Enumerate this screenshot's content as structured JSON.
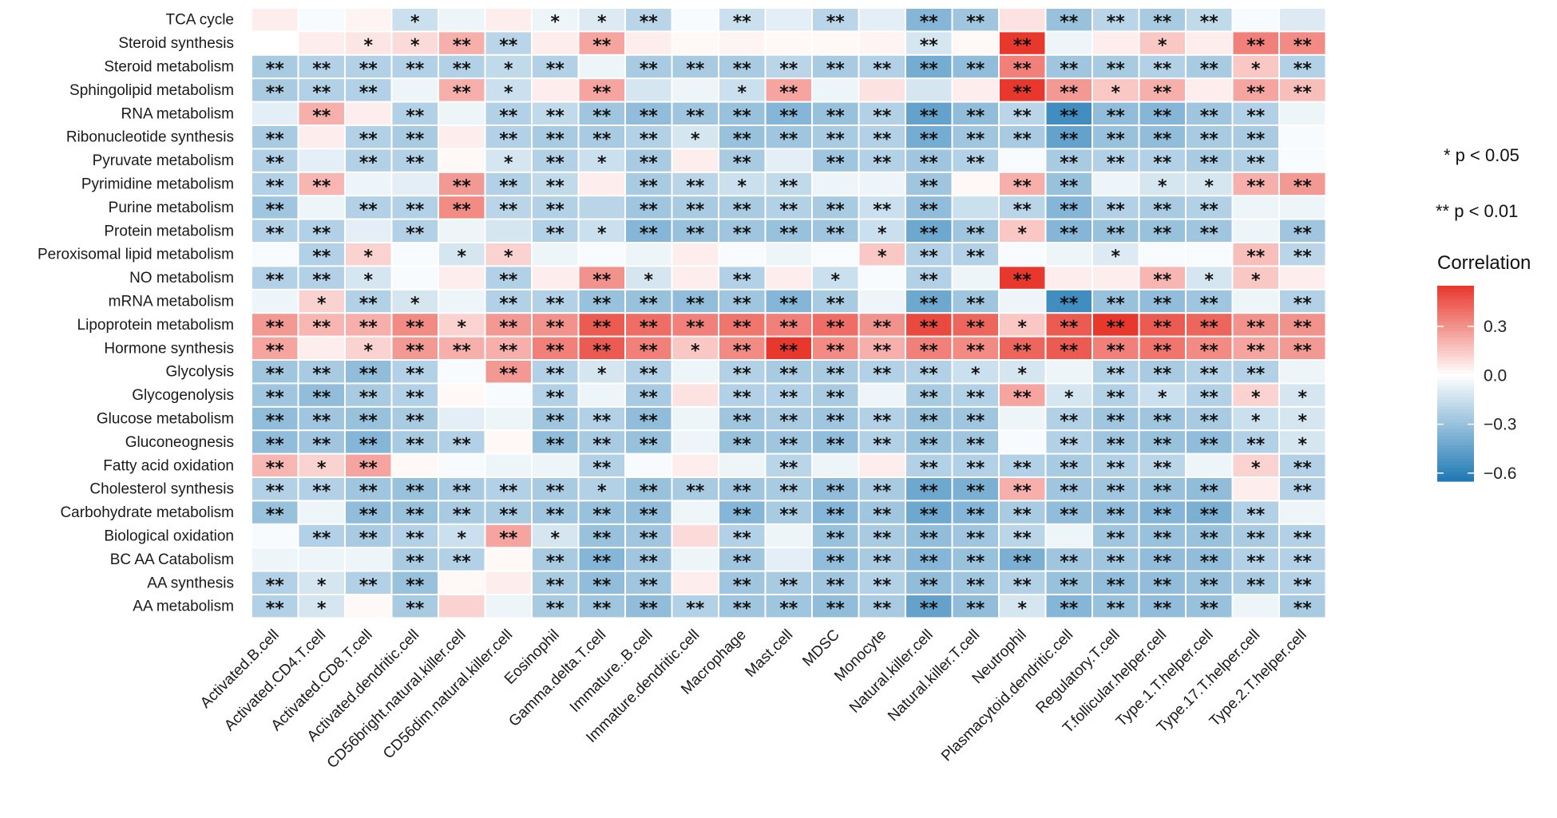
{
  "chart_data": {
    "type": "heatmap",
    "title": "",
    "xlabel": "",
    "ylabel": "",
    "rows": [
      "TCA cycle",
      "Steroid synthesis",
      "Steroid metabolism",
      "Sphingolipid metabolism",
      "RNA metabolism",
      "Ribonucleotide synthesis",
      "Pyruvate metabolism",
      "Pyrimidine metabolism",
      "Purine metabolism",
      "Protein metabolism",
      "Peroxisomal lipid metabolism",
      "NO metabolism",
      "mRNA metabolism",
      "Lipoprotein metabolism",
      "Hormone synthesis",
      "Glycolysis",
      "Glycogenolysis",
      "Glucose metabolism",
      "Gluconeognesis",
      "Fatty acid oxidation",
      "Cholesterol synthesis",
      "Carbohydrate metabolism",
      "Biological oxidation",
      "BC AA Catabolism",
      "AA synthesis",
      "AA metabolism"
    ],
    "columns": [
      "Activated.B.cell",
      "Activated.CD4.T.cell",
      "Activated.CD8.T.cell",
      "Activated.dendritic.cell",
      "CD56bright.natural.killer.cell",
      "CD56dim.natural.killer.cell",
      "Eosinophil",
      "Gamma.delta.T.cell",
      "Immature..B.cell",
      "Immature.dendritic.cell",
      "Macrophage",
      "Mast.cell",
      "MDSC",
      "Monocyte",
      "Natural.killer.cell",
      "Natural.killer.T.cell",
      "Neutrophil",
      "Plasmacytoid.dendritic.cell",
      "Regulatory.T.cell",
      "T.follicular.helper.cell",
      "Type.1.T.helper.cell",
      "Type.17.T.helper.cell",
      "Type.2.T.helper.cell"
    ],
    "values": [
      [
        0.05,
        -0.02,
        0.03,
        -0.15,
        -0.05,
        0.05,
        -0.05,
        -0.1,
        -0.2,
        -0.02,
        -0.15,
        -0.08,
        -0.2,
        -0.08,
        -0.35,
        -0.28,
        0.08,
        -0.3,
        -0.2,
        -0.25,
        -0.18,
        -0.02,
        -0.1
      ],
      [
        0.0,
        0.05,
        0.07,
        0.1,
        0.22,
        -0.2,
        0.05,
        0.25,
        0.05,
        0.02,
        0.03,
        0.02,
        0.02,
        0.03,
        -0.12,
        0.02,
        0.58,
        -0.05,
        0.05,
        0.15,
        0.05,
        0.35,
        0.32
      ],
      [
        -0.25,
        -0.22,
        -0.22,
        -0.22,
        -0.22,
        -0.18,
        -0.22,
        -0.05,
        -0.25,
        -0.25,
        -0.25,
        -0.2,
        -0.25,
        -0.22,
        -0.4,
        -0.32,
        0.35,
        -0.28,
        -0.25,
        -0.22,
        -0.25,
        0.15,
        -0.22
      ],
      [
        -0.25,
        -0.22,
        -0.22,
        -0.05,
        0.22,
        -0.15,
        0.05,
        0.25,
        -0.12,
        -0.05,
        -0.15,
        0.25,
        -0.05,
        0.08,
        -0.12,
        0.05,
        0.55,
        0.28,
        0.15,
        0.22,
        0.05,
        0.25,
        0.18
      ],
      [
        -0.08,
        0.22,
        0.05,
        -0.22,
        -0.05,
        -0.22,
        -0.18,
        -0.28,
        -0.32,
        -0.28,
        -0.3,
        -0.35,
        -0.3,
        -0.22,
        -0.45,
        -0.32,
        -0.2,
        -0.55,
        -0.32,
        -0.35,
        -0.28,
        -0.22,
        -0.05
      ],
      [
        -0.25,
        0.05,
        -0.22,
        -0.25,
        0.05,
        -0.22,
        -0.25,
        -0.25,
        -0.22,
        -0.12,
        -0.3,
        -0.28,
        -0.25,
        -0.22,
        -0.4,
        -0.28,
        -0.25,
        -0.45,
        -0.3,
        -0.32,
        -0.25,
        -0.25,
        -0.02
      ],
      [
        -0.22,
        -0.08,
        -0.22,
        -0.22,
        0.02,
        -0.12,
        -0.22,
        -0.15,
        -0.25,
        0.05,
        -0.25,
        -0.08,
        -0.28,
        -0.22,
        -0.28,
        -0.22,
        -0.02,
        -0.25,
        -0.22,
        -0.22,
        -0.25,
        -0.22,
        -0.02
      ],
      [
        -0.22,
        0.2,
        -0.05,
        -0.08,
        0.28,
        -0.22,
        -0.18,
        0.05,
        -0.25,
        -0.2,
        -0.15,
        -0.18,
        -0.05,
        -0.05,
        -0.28,
        0.02,
        0.22,
        -0.3,
        -0.05,
        -0.12,
        -0.12,
        0.22,
        0.28
      ],
      [
        -0.28,
        -0.05,
        -0.22,
        -0.22,
        0.32,
        -0.2,
        -0.22,
        -0.2,
        -0.28,
        -0.25,
        -0.25,
        -0.22,
        -0.25,
        -0.15,
        -0.32,
        -0.15,
        -0.2,
        -0.35,
        -0.22,
        -0.25,
        -0.22,
        -0.05,
        -0.05
      ],
      [
        -0.22,
        -0.22,
        -0.08,
        -0.22,
        -0.05,
        -0.12,
        -0.22,
        -0.15,
        -0.35,
        -0.3,
        -0.28,
        -0.3,
        -0.28,
        -0.15,
        -0.42,
        -0.28,
        0.15,
        -0.35,
        -0.3,
        -0.3,
        -0.28,
        -0.05,
        -0.28
      ],
      [
        -0.02,
        -0.22,
        0.12,
        -0.02,
        -0.12,
        0.12,
        -0.05,
        -0.02,
        -0.05,
        0.05,
        -0.02,
        -0.05,
        -0.02,
        0.15,
        -0.22,
        -0.22,
        -0.02,
        -0.05,
        -0.1,
        -0.02,
        -0.02,
        0.18,
        -0.2
      ],
      [
        -0.22,
        -0.22,
        -0.12,
        -0.02,
        0.05,
        -0.22,
        0.05,
        0.3,
        -0.12,
        0.05,
        -0.22,
        0.05,
        -0.15,
        -0.02,
        -0.22,
        -0.05,
        0.55,
        0.05,
        0.05,
        0.2,
        -0.12,
        0.15,
        0.05
      ],
      [
        -0.05,
        0.12,
        -0.22,
        -0.12,
        -0.05,
        -0.22,
        -0.22,
        -0.3,
        -0.3,
        -0.32,
        -0.28,
        -0.35,
        -0.25,
        -0.05,
        -0.42,
        -0.28,
        -0.05,
        -0.55,
        -0.3,
        -0.32,
        -0.28,
        -0.05,
        -0.22
      ],
      [
        0.28,
        0.2,
        0.22,
        0.32,
        0.12,
        0.28,
        0.3,
        0.45,
        0.4,
        0.35,
        0.38,
        0.35,
        0.4,
        0.3,
        0.5,
        0.42,
        0.15,
        0.45,
        0.55,
        0.45,
        0.42,
        0.3,
        0.3
      ],
      [
        0.25,
        0.05,
        0.12,
        0.28,
        0.22,
        0.22,
        0.35,
        0.45,
        0.35,
        0.15,
        0.32,
        0.58,
        0.32,
        0.22,
        0.35,
        0.32,
        0.42,
        0.45,
        0.35,
        0.38,
        0.32,
        0.25,
        0.28
      ],
      [
        -0.28,
        -0.25,
        -0.32,
        -0.22,
        -0.02,
        0.28,
        -0.22,
        -0.12,
        -0.22,
        -0.05,
        -0.22,
        -0.25,
        -0.25,
        -0.22,
        -0.22,
        -0.15,
        -0.12,
        -0.05,
        -0.22,
        -0.25,
        -0.22,
        -0.22,
        -0.05
      ],
      [
        -0.28,
        -0.32,
        -0.25,
        -0.22,
        0.02,
        -0.02,
        -0.22,
        -0.05,
        -0.25,
        0.08,
        -0.22,
        -0.22,
        -0.25,
        -0.05,
        -0.25,
        -0.22,
        0.25,
        -0.12,
        -0.22,
        -0.15,
        -0.22,
        0.12,
        -0.12
      ],
      [
        -0.32,
        -0.28,
        -0.3,
        -0.25,
        -0.08,
        -0.05,
        -0.28,
        -0.22,
        -0.32,
        -0.05,
        -0.28,
        -0.25,
        -0.28,
        -0.22,
        -0.3,
        -0.28,
        -0.05,
        -0.22,
        -0.28,
        -0.28,
        -0.25,
        -0.15,
        -0.12
      ],
      [
        -0.32,
        -0.28,
        -0.35,
        -0.25,
        -0.22,
        0.02,
        -0.32,
        -0.25,
        -0.3,
        -0.05,
        -0.3,
        -0.28,
        -0.32,
        -0.22,
        -0.3,
        -0.28,
        -0.02,
        -0.22,
        -0.28,
        -0.3,
        -0.32,
        -0.22,
        -0.12
      ],
      [
        0.2,
        0.12,
        0.25,
        0.02,
        -0.02,
        -0.05,
        -0.05,
        -0.22,
        -0.02,
        0.05,
        -0.05,
        -0.2,
        -0.05,
        0.05,
        -0.22,
        -0.22,
        -0.22,
        -0.25,
        -0.22,
        -0.2,
        -0.05,
        0.12,
        -0.22
      ],
      [
        -0.22,
        -0.22,
        -0.28,
        -0.3,
        -0.25,
        -0.22,
        -0.25,
        -0.22,
        -0.3,
        -0.25,
        -0.28,
        -0.25,
        -0.32,
        -0.25,
        -0.42,
        -0.38,
        0.22,
        -0.28,
        -0.28,
        -0.3,
        -0.32,
        0.05,
        -0.22
      ],
      [
        -0.3,
        -0.05,
        -0.32,
        -0.3,
        -0.25,
        -0.25,
        -0.28,
        -0.3,
        -0.32,
        -0.05,
        -0.35,
        -0.25,
        -0.35,
        -0.28,
        -0.42,
        -0.35,
        -0.25,
        -0.32,
        -0.32,
        -0.35,
        -0.38,
        -0.22,
        -0.05
      ],
      [
        -0.02,
        -0.22,
        -0.25,
        -0.22,
        -0.15,
        0.25,
        -0.12,
        -0.3,
        -0.28,
        0.1,
        -0.22,
        -0.05,
        -0.3,
        -0.25,
        -0.32,
        -0.28,
        -0.2,
        -0.05,
        -0.28,
        -0.3,
        -0.3,
        -0.25,
        -0.22
      ],
      [
        -0.05,
        -0.05,
        -0.05,
        -0.25,
        -0.22,
        0.02,
        -0.25,
        -0.35,
        -0.28,
        -0.05,
        -0.28,
        -0.08,
        -0.32,
        -0.25,
        -0.35,
        -0.3,
        -0.38,
        -0.28,
        -0.28,
        -0.32,
        -0.32,
        -0.22,
        -0.22
      ],
      [
        -0.22,
        -0.12,
        -0.22,
        -0.3,
        0.02,
        0.05,
        -0.25,
        -0.32,
        -0.28,
        0.05,
        -0.28,
        -0.25,
        -0.28,
        -0.22,
        -0.32,
        -0.28,
        -0.22,
        -0.3,
        -0.32,
        -0.32,
        -0.3,
        -0.25,
        -0.22
      ],
      [
        -0.22,
        -0.12,
        0.02,
        -0.25,
        0.12,
        -0.05,
        -0.25,
        -0.28,
        -0.32,
        -0.22,
        -0.28,
        -0.28,
        -0.32,
        -0.25,
        -0.45,
        -0.32,
        -0.12,
        -0.35,
        -0.3,
        -0.32,
        -0.3,
        -0.05,
        -0.25
      ]
    ],
    "significance": [
      [
        "",
        "",
        "",
        "*",
        "",
        "",
        "*",
        "*",
        "**",
        "",
        "**",
        "",
        "**",
        "",
        "**",
        "**",
        "",
        "**",
        "**",
        "**",
        "**",
        "",
        ""
      ],
      [
        "",
        "",
        "*",
        "*",
        "**",
        "**",
        "",
        "**",
        "",
        "",
        "",
        "",
        "",
        "",
        "**",
        "",
        "**",
        "",
        "",
        "*",
        "",
        "**",
        "**"
      ],
      [
        "**",
        "**",
        "**",
        "**",
        "**",
        "*",
        "**",
        "",
        "**",
        "**",
        "**",
        "**",
        "**",
        "**",
        "**",
        "**",
        "**",
        "**",
        "**",
        "**",
        "**",
        "*",
        "**"
      ],
      [
        "**",
        "**",
        "**",
        "",
        "**",
        "*",
        "",
        "**",
        "",
        "",
        "*",
        "**",
        "",
        "",
        "",
        "",
        "**",
        "**",
        "*",
        "**",
        "",
        "**",
        "**"
      ],
      [
        "",
        "**",
        "",
        "**",
        "",
        "**",
        "**",
        "**",
        "**",
        "**",
        "**",
        "**",
        "**",
        "**",
        "**",
        "**",
        "**",
        "**",
        "**",
        "**",
        "**",
        "**",
        ""
      ],
      [
        "**",
        "",
        "**",
        "**",
        "",
        "**",
        "**",
        "**",
        "**",
        "*",
        "**",
        "**",
        "**",
        "**",
        "**",
        "**",
        "**",
        "**",
        "**",
        "**",
        "**",
        "**",
        ""
      ],
      [
        "**",
        "",
        "**",
        "**",
        "",
        "*",
        "**",
        "*",
        "**",
        "",
        "**",
        "",
        "**",
        "**",
        "**",
        "**",
        "",
        "**",
        "**",
        "**",
        "**",
        "**",
        ""
      ],
      [
        "**",
        "**",
        "",
        "",
        "**",
        "**",
        "**",
        "",
        "**",
        "**",
        "*",
        "**",
        "",
        "",
        "**",
        "",
        "**",
        "**",
        "",
        "*",
        "*",
        "**",
        "**"
      ],
      [
        "**",
        "",
        "**",
        "**",
        "**",
        "**",
        "**",
        "",
        "**",
        "**",
        "**",
        "**",
        "**",
        "**",
        "**",
        "",
        "**",
        "**",
        "**",
        "**",
        "**",
        "",
        ""
      ],
      [
        "**",
        "**",
        "",
        "**",
        "",
        "",
        "**",
        "*",
        "**",
        "**",
        "**",
        "**",
        "**",
        "*",
        "**",
        "**",
        "*",
        "**",
        "**",
        "**",
        "**",
        "",
        "**"
      ],
      [
        "",
        "**",
        "*",
        "",
        "*",
        "*",
        "",
        "",
        "",
        "",
        "",
        "",
        "",
        "*",
        "**",
        "**",
        "",
        "",
        "*",
        "",
        "",
        "**",
        "**"
      ],
      [
        "**",
        "**",
        "*",
        "",
        "",
        "**",
        "",
        "**",
        "*",
        "",
        "**",
        "",
        "*",
        "",
        "**",
        "",
        "**",
        "",
        "",
        "**",
        "*",
        "*",
        ""
      ],
      [
        "",
        "*",
        "**",
        "*",
        "",
        "**",
        "**",
        "**",
        "**",
        "**",
        "**",
        "**",
        "**",
        "",
        "**",
        "**",
        "",
        "**",
        "**",
        "**",
        "**",
        "",
        "**"
      ],
      [
        "**",
        "**",
        "**",
        "**",
        "*",
        "**",
        "**",
        "**",
        "**",
        "**",
        "**",
        "**",
        "**",
        "**",
        "**",
        "**",
        "*",
        "**",
        "**",
        "**",
        "**",
        "**",
        "**"
      ],
      [
        "**",
        "",
        "*",
        "**",
        "**",
        "**",
        "**",
        "**",
        "**",
        "*",
        "**",
        "**",
        "**",
        "**",
        "**",
        "**",
        "**",
        "**",
        "**",
        "**",
        "**",
        "**",
        "**"
      ],
      [
        "**",
        "**",
        "**",
        "**",
        "",
        "**",
        "**",
        "*",
        "**",
        "",
        "**",
        "**",
        "**",
        "**",
        "**",
        "*",
        "*",
        "",
        "**",
        "**",
        "**",
        "**",
        ""
      ],
      [
        "**",
        "**",
        "**",
        "**",
        "",
        "",
        "**",
        "",
        "**",
        "",
        "**",
        "**",
        "**",
        "",
        "**",
        "**",
        "**",
        "*",
        "**",
        "*",
        "**",
        "*",
        "*"
      ],
      [
        "**",
        "**",
        "**",
        "**",
        "",
        "",
        "**",
        "**",
        "**",
        "",
        "**",
        "**",
        "**",
        "**",
        "**",
        "**",
        "",
        "**",
        "**",
        "**",
        "**",
        "*",
        "*"
      ],
      [
        "**",
        "**",
        "**",
        "**",
        "**",
        "",
        "**",
        "**",
        "**",
        "",
        "**",
        "**",
        "**",
        "**",
        "**",
        "**",
        "",
        "**",
        "**",
        "**",
        "**",
        "**",
        "*"
      ],
      [
        "**",
        "*",
        "**",
        "",
        "",
        "",
        "",
        "**",
        "",
        "",
        "",
        "**",
        "",
        "",
        "**",
        "**",
        "**",
        "**",
        "**",
        "**",
        "",
        "*",
        "**"
      ],
      [
        "**",
        "**",
        "**",
        "**",
        "**",
        "**",
        "**",
        "*",
        "**",
        "**",
        "**",
        "**",
        "**",
        "**",
        "**",
        "**",
        "**",
        "**",
        "**",
        "**",
        "**",
        "",
        "**"
      ],
      [
        "**",
        "",
        "**",
        "**",
        "**",
        "**",
        "**",
        "**",
        "**",
        "",
        "**",
        "**",
        "**",
        "**",
        "**",
        "**",
        "**",
        "**",
        "**",
        "**",
        "**",
        "**",
        ""
      ],
      [
        "",
        "**",
        "**",
        "**",
        "*",
        "**",
        "*",
        "**",
        "**",
        "",
        "**",
        "",
        "**",
        "**",
        "**",
        "**",
        "**",
        "",
        "**",
        "**",
        "**",
        "**",
        "**"
      ],
      [
        "",
        "",
        "",
        "**",
        "**",
        "",
        "**",
        "**",
        "**",
        "",
        "**",
        "",
        "**",
        "**",
        "**",
        "**",
        "**",
        "**",
        "**",
        "**",
        "**",
        "**",
        "**"
      ],
      [
        "**",
        "*",
        "**",
        "**",
        "",
        "",
        "**",
        "**",
        "**",
        "",
        "**",
        "**",
        "**",
        "**",
        "**",
        "**",
        "**",
        "**",
        "**",
        "**",
        "**",
        "**",
        "**"
      ],
      [
        "**",
        "*",
        "",
        "**",
        "",
        "",
        "**",
        "**",
        "**",
        "**",
        "**",
        "**",
        "**",
        "**",
        "**",
        "**",
        "*",
        "**",
        "**",
        "**",
        "**",
        "",
        "**"
      ]
    ],
    "legend": {
      "significance_labels": [
        "* p < 0.05",
        "** p < 0.01"
      ],
      "title": "Correlation",
      "ticks": [
        0.3,
        0.0,
        -0.3,
        -0.6
      ],
      "tick_labels": [
        "0.3",
        "0.0",
        "−0.3",
        "−0.6"
      ],
      "range": [
        -0.65,
        0.55
      ],
      "placement": "right"
    },
    "colors": {
      "positive": "#e8372c",
      "neutral": "#ffffff",
      "negative": "#1f78b4"
    }
  }
}
